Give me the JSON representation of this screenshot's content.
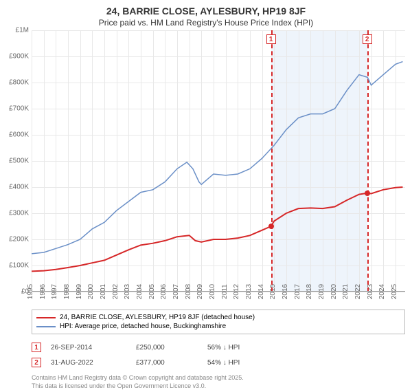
{
  "title": "24, BARRIE CLOSE, AYLESBURY, HP19 8JF",
  "subtitle": "Price paid vs. HM Land Registry's House Price Index (HPI)",
  "chart": {
    "type": "line",
    "background_color": "#ffffff",
    "grid_color": "#e8e8e8",
    "xlim": [
      1995,
      2025.8
    ],
    "ylim": [
      0,
      1000000
    ],
    "ytick_step": 100000,
    "ytick_labels": [
      "£0",
      "£100K",
      "£200K",
      "£300K",
      "£400K",
      "£500K",
      "£600K",
      "£700K",
      "£800K",
      "£900K",
      "£1M"
    ],
    "xtick_step": 1,
    "xtick_labels": [
      "1995",
      "1996",
      "1997",
      "1998",
      "1999",
      "2000",
      "2001",
      "2002",
      "2003",
      "2004",
      "2005",
      "2006",
      "2007",
      "2008",
      "2009",
      "2010",
      "2011",
      "2012",
      "2013",
      "2014",
      "2015",
      "2016",
      "2017",
      "2018",
      "2019",
      "2020",
      "2021",
      "2022",
      "2023",
      "2024",
      "2025"
    ],
    "shaded_region": {
      "from": 2014.74,
      "to": 2022.67,
      "color": "#eef4fb"
    },
    "vlines": [
      {
        "x": 2014.74,
        "label": "1",
        "color": "#d62728"
      },
      {
        "x": 2022.67,
        "label": "2",
        "color": "#d62728"
      }
    ],
    "series": [
      {
        "name": "price_paid",
        "color": "#d62728",
        "width": 2,
        "points": [
          [
            1995,
            78000
          ],
          [
            1996,
            80000
          ],
          [
            1997,
            85000
          ],
          [
            1998,
            92000
          ],
          [
            1999,
            100000
          ],
          [
            2000,
            110000
          ],
          [
            2001,
            120000
          ],
          [
            2002,
            140000
          ],
          [
            2003,
            160000
          ],
          [
            2004,
            178000
          ],
          [
            2005,
            185000
          ],
          [
            2006,
            195000
          ],
          [
            2007,
            210000
          ],
          [
            2008,
            215000
          ],
          [
            2008.5,
            195000
          ],
          [
            2009,
            190000
          ],
          [
            2010,
            200000
          ],
          [
            2011,
            200000
          ],
          [
            2012,
            205000
          ],
          [
            2013,
            215000
          ],
          [
            2014,
            235000
          ],
          [
            2014.74,
            250000
          ],
          [
            2015,
            270000
          ],
          [
            2016,
            300000
          ],
          [
            2017,
            318000
          ],
          [
            2018,
            320000
          ],
          [
            2019,
            318000
          ],
          [
            2020,
            325000
          ],
          [
            2021,
            350000
          ],
          [
            2022,
            372000
          ],
          [
            2022.67,
            377000
          ],
          [
            2023,
            375000
          ],
          [
            2024,
            390000
          ],
          [
            2025,
            398000
          ],
          [
            2025.6,
            400000
          ]
        ],
        "markers": [
          {
            "x": 2014.74,
            "y": 250000
          },
          {
            "x": 2022.67,
            "y": 377000
          }
        ]
      },
      {
        "name": "hpi",
        "color": "#6a8fc7",
        "width": 1.5,
        "points": [
          [
            1995,
            145000
          ],
          [
            1996,
            150000
          ],
          [
            1997,
            165000
          ],
          [
            1998,
            180000
          ],
          [
            1999,
            200000
          ],
          [
            2000,
            240000
          ],
          [
            2001,
            265000
          ],
          [
            2002,
            310000
          ],
          [
            2003,
            345000
          ],
          [
            2004,
            380000
          ],
          [
            2005,
            390000
          ],
          [
            2006,
            420000
          ],
          [
            2007,
            470000
          ],
          [
            2007.8,
            495000
          ],
          [
            2008.3,
            470000
          ],
          [
            2008.8,
            420000
          ],
          [
            2009,
            410000
          ],
          [
            2009.5,
            430000
          ],
          [
            2010,
            450000
          ],
          [
            2011,
            445000
          ],
          [
            2012,
            450000
          ],
          [
            2013,
            470000
          ],
          [
            2014,
            510000
          ],
          [
            2015,
            560000
          ],
          [
            2016,
            620000
          ],
          [
            2017,
            665000
          ],
          [
            2018,
            680000
          ],
          [
            2019,
            680000
          ],
          [
            2020,
            700000
          ],
          [
            2021,
            770000
          ],
          [
            2022,
            830000
          ],
          [
            2022.7,
            820000
          ],
          [
            2023,
            790000
          ],
          [
            2024,
            830000
          ],
          [
            2025,
            870000
          ],
          [
            2025.6,
            880000
          ]
        ]
      }
    ]
  },
  "legend": {
    "items": [
      {
        "color": "#d62728",
        "label": "24, BARRIE CLOSE, AYLESBURY, HP19 8JF (detached house)"
      },
      {
        "color": "#6a8fc7",
        "label": "HPI: Average price, detached house, Buckinghamshire"
      }
    ]
  },
  "sales": [
    {
      "marker": "1",
      "marker_color": "#d62728",
      "date": "26-SEP-2014",
      "price": "£250,000",
      "delta": "56% ↓ HPI"
    },
    {
      "marker": "2",
      "marker_color": "#d62728",
      "date": "31-AUG-2022",
      "price": "£377,000",
      "delta": "54% ↓ HPI"
    }
  ],
  "footnote_line1": "Contains HM Land Registry data © Crown copyright and database right 2025.",
  "footnote_line2": "This data is licensed under the Open Government Licence v3.0."
}
